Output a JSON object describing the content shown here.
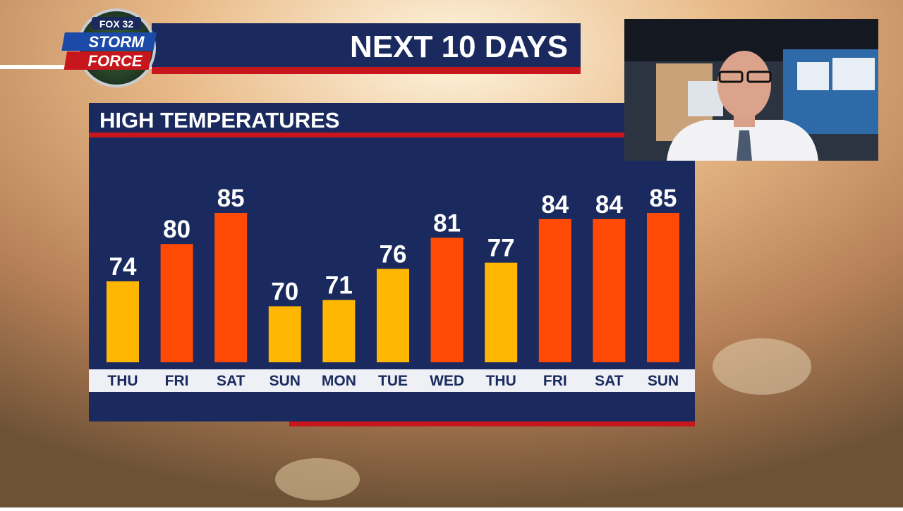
{
  "header": {
    "title": "NEXT 10 DAYS",
    "logo_top": "FOX 32",
    "logo_line1": "STORM",
    "logo_line2": "FORCE"
  },
  "chart_data": {
    "type": "bar",
    "title": "HIGH TEMPERATURES",
    "categories": [
      "THU",
      "FRI",
      "SAT",
      "SUN",
      "MON",
      "TUE",
      "WED",
      "THU",
      "FRI",
      "SAT",
      "SUN"
    ],
    "values": [
      74,
      80,
      85,
      70,
      71,
      76,
      81,
      77,
      84,
      84,
      85
    ],
    "colors": [
      "#ffb703",
      "#ff4a05",
      "#ff4a05",
      "#ffb703",
      "#ffb703",
      "#ffb703",
      "#ff4a05",
      "#ffb703",
      "#ff4a05",
      "#ff4a05",
      "#ff4a05"
    ],
    "ylim": [
      61,
      85
    ]
  }
}
